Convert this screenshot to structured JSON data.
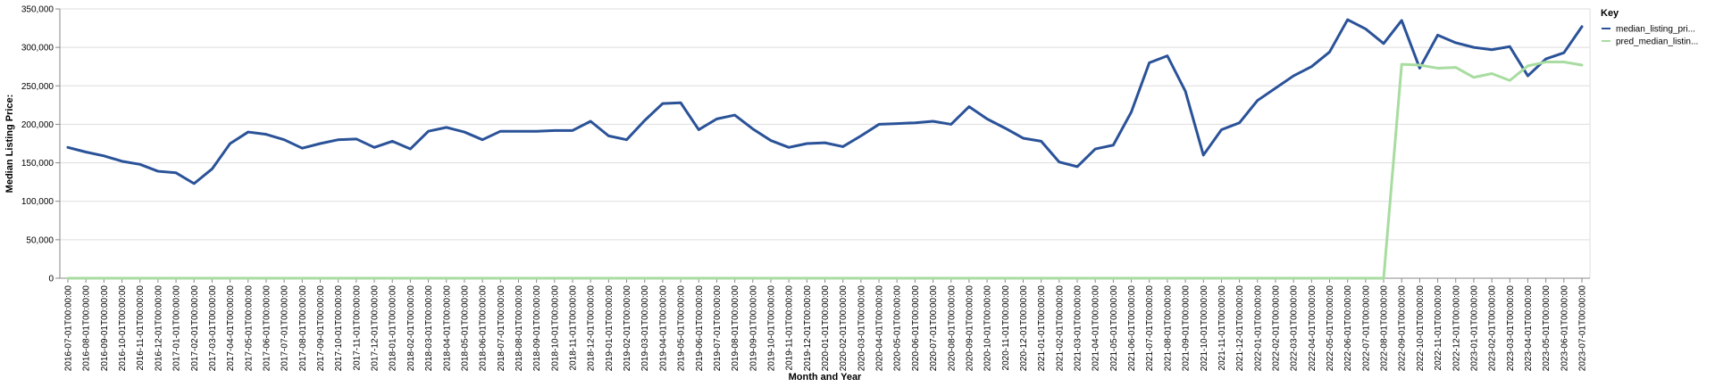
{
  "chart_data": {
    "type": "line",
    "xlabel": "Month and Year",
    "ylabel": "Median Listing Price:",
    "ylim": [
      0,
      350000
    ],
    "yticks": [
      "0",
      "50,000",
      "100,000",
      "150,000",
      "200,000",
      "250,000",
      "300,000",
      "350,000"
    ],
    "ytick_values": [
      0,
      50000,
      100000,
      150000,
      200000,
      250000,
      300000,
      350000
    ],
    "grid": true,
    "legend": {
      "title": "Key",
      "placement": "right",
      "entries": [
        "median_listing_pri...",
        "pred_median_listin..."
      ]
    },
    "categories": [
      "2016-07-01T00:00:00",
      "2016-08-01T00:00:00",
      "2016-09-01T00:00:00",
      "2016-10-01T00:00:00",
      "2016-11-01T00:00:00",
      "2016-12-01T00:00:00",
      "2017-01-01T00:00:00",
      "2017-02-01T00:00:00",
      "2017-03-01T00:00:00",
      "2017-04-01T00:00:00",
      "2017-05-01T00:00:00",
      "2017-06-01T00:00:00",
      "2017-07-01T00:00:00",
      "2017-08-01T00:00:00",
      "2017-09-01T00:00:00",
      "2017-10-01T00:00:00",
      "2017-11-01T00:00:00",
      "2017-12-01T00:00:00",
      "2018-01-01T00:00:00",
      "2018-02-01T00:00:00",
      "2018-03-01T00:00:00",
      "2018-04-01T00:00:00",
      "2018-05-01T00:00:00",
      "2018-06-01T00:00:00",
      "2018-07-01T00:00:00",
      "2018-08-01T00:00:00",
      "2018-09-01T00:00:00",
      "2018-10-01T00:00:00",
      "2018-11-01T00:00:00",
      "2018-12-01T00:00:00",
      "2019-01-01T00:00:00",
      "2019-02-01T00:00:00",
      "2019-03-01T00:00:00",
      "2019-04-01T00:00:00",
      "2019-05-01T00:00:00",
      "2019-06-01T00:00:00",
      "2019-07-01T00:00:00",
      "2019-08-01T00:00:00",
      "2019-09-01T00:00:00",
      "2019-10-01T00:00:00",
      "2019-11-01T00:00:00",
      "2019-12-01T00:00:00",
      "2020-01-01T00:00:00",
      "2020-02-01T00:00:00",
      "2020-03-01T00:00:00",
      "2020-04-01T00:00:00",
      "2020-05-01T00:00:00",
      "2020-06-01T00:00:00",
      "2020-07-01T00:00:00",
      "2020-08-01T00:00:00",
      "2020-09-01T00:00:00",
      "2020-10-01T00:00:00",
      "2020-11-01T00:00:00",
      "2020-12-01T00:00:00",
      "2021-01-01T00:00:00",
      "2021-02-01T00:00:00",
      "2021-03-01T00:00:00",
      "2021-04-01T00:00:00",
      "2021-05-01T00:00:00",
      "2021-06-01T00:00:00",
      "2021-07-01T00:00:00",
      "2021-08-01T00:00:00",
      "2021-09-01T00:00:00",
      "2021-10-01T00:00:00",
      "2021-11-01T00:00:00",
      "2021-12-01T00:00:00",
      "2022-01-01T00:00:00",
      "2022-02-01T00:00:00",
      "2022-03-01T00:00:00",
      "2022-04-01T00:00:00",
      "2022-05-01T00:00:00",
      "2022-06-01T00:00:00",
      "2022-07-01T00:00:00",
      "2022-08-01T00:00:00",
      "2022-09-01T00:00:00",
      "2022-10-01T00:00:00",
      "2022-11-01T00:00:00",
      "2022-12-01T00:00:00",
      "2023-01-01T00:00:00",
      "2023-02-01T00:00:00",
      "2023-03-01T00:00:00",
      "2023-04-01T00:00:00",
      "2023-05-01T00:00:00",
      "2023-06-01T00:00:00",
      "2023-07-01T00:00:00"
    ],
    "series": [
      {
        "name": "median_listing_pri...",
        "color": "#2a5298",
        "values": [
          170000,
          164000,
          159000,
          152000,
          148000,
          139000,
          137000,
          123000,
          142000,
          175000,
          190000,
          187000,
          180000,
          169000,
          175000,
          180000,
          181000,
          170000,
          178000,
          168000,
          191000,
          196000,
          190000,
          180000,
          191000,
          191000,
          191000,
          192000,
          192000,
          204000,
          185000,
          180000,
          205000,
          227000,
          228000,
          193000,
          207000,
          212000,
          194000,
          179000,
          170000,
          175000,
          176000,
          171000,
          185000,
          200000,
          201000,
          202000,
          204000,
          200000,
          223000,
          207000,
          195000,
          182000,
          178000,
          151000,
          145000,
          168000,
          173000,
          216000,
          280000,
          289000,
          243000,
          160000,
          193000,
          202000,
          231000,
          247000,
          263000,
          275000,
          294000,
          336000,
          324000,
          305000,
          335000,
          273000,
          316000,
          306000,
          300000,
          297000,
          301000,
          263000,
          285000,
          293000,
          327000
        ]
      },
      {
        "name": "pred_median_listin...",
        "color": "#a8dca0",
        "values": [
          0,
          0,
          0,
          0,
          0,
          0,
          0,
          0,
          0,
          0,
          0,
          0,
          0,
          0,
          0,
          0,
          0,
          0,
          0,
          0,
          0,
          0,
          0,
          0,
          0,
          0,
          0,
          0,
          0,
          0,
          0,
          0,
          0,
          0,
          0,
          0,
          0,
          0,
          0,
          0,
          0,
          0,
          0,
          0,
          0,
          0,
          0,
          0,
          0,
          0,
          0,
          0,
          0,
          0,
          0,
          0,
          0,
          0,
          0,
          0,
          0,
          0,
          0,
          0,
          0,
          0,
          0,
          0,
          0,
          0,
          0,
          0,
          0,
          0,
          278000,
          277000,
          273000,
          274000,
          261000,
          266000,
          257000,
          276000,
          281000,
          281000,
          277000
        ]
      }
    ]
  }
}
